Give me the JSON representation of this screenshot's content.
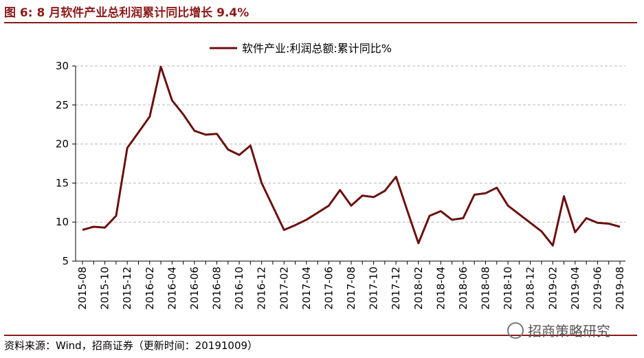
{
  "figure": {
    "title": "图 6:  8 月软件产业总利润累计同比增长 9.4%",
    "source": "资料来源：Wind，招商证券（更新时间：20191009）",
    "watermark": "招商策略研究",
    "accent_color": "#8B1A1A"
  },
  "chart_data": {
    "type": "line",
    "title": "",
    "xlabel": "",
    "ylabel": "",
    "ylim": [
      5,
      30
    ],
    "yticks": [
      5,
      10,
      15,
      20,
      25,
      30
    ],
    "grid": "horizontal-dashed",
    "legend": "top",
    "x_tick_labels": [
      "2015-08",
      "2015-10",
      "2015-12",
      "2016-02",
      "2016-04",
      "2016-06",
      "2016-08",
      "2016-10",
      "2016-12",
      "2017-02",
      "2017-04",
      "2017-06",
      "2017-08",
      "2017-10",
      "2017-12",
      "2018-02",
      "2018-04",
      "2018-06",
      "2018-08",
      "2018-10",
      "2018-12",
      "2019-02",
      "2019-04",
      "2019-06",
      "2019-08"
    ],
    "x": [
      "2015-08",
      "2015-09",
      "2015-10",
      "2015-11",
      "2015-12",
      "2016-01",
      "2016-02",
      "2016-03",
      "2016-04",
      "2016-05",
      "2016-06",
      "2016-07",
      "2016-08",
      "2016-09",
      "2016-10",
      "2016-11",
      "2016-12",
      "2017-01",
      "2017-02",
      "2017-03",
      "2017-04",
      "2017-05",
      "2017-06",
      "2017-07",
      "2017-08",
      "2017-09",
      "2017-10",
      "2017-11",
      "2017-12",
      "2018-01",
      "2018-02",
      "2018-03",
      "2018-04",
      "2018-05",
      "2018-06",
      "2018-07",
      "2018-08",
      "2018-09",
      "2018-10",
      "2018-11",
      "2018-12",
      "2019-01",
      "2019-02",
      "2019-03",
      "2019-04",
      "2019-05",
      "2019-06",
      "2019-07",
      "2019-08"
    ],
    "series": [
      {
        "name": "软件产业:利润总额:累计同比%",
        "color": "#6B0F0F",
        "values": [
          9.0,
          9.4,
          9.3,
          10.8,
          19.5,
          21.5,
          23.5,
          29.9,
          25.6,
          23.8,
          21.7,
          21.2,
          21.3,
          19.3,
          18.6,
          19.8,
          15.0,
          12.0,
          9.0,
          9.6,
          10.3,
          11.2,
          12.1,
          14.1,
          12.1,
          13.4,
          13.2,
          14.0,
          15.8,
          11.5,
          7.3,
          10.8,
          11.4,
          10.3,
          10.5,
          13.5,
          13.7,
          14.4,
          12.1,
          11.0,
          9.9,
          8.8,
          7.0,
          13.3,
          8.7,
          10.5,
          9.9,
          9.8,
          9.4
        ]
      }
    ]
  }
}
